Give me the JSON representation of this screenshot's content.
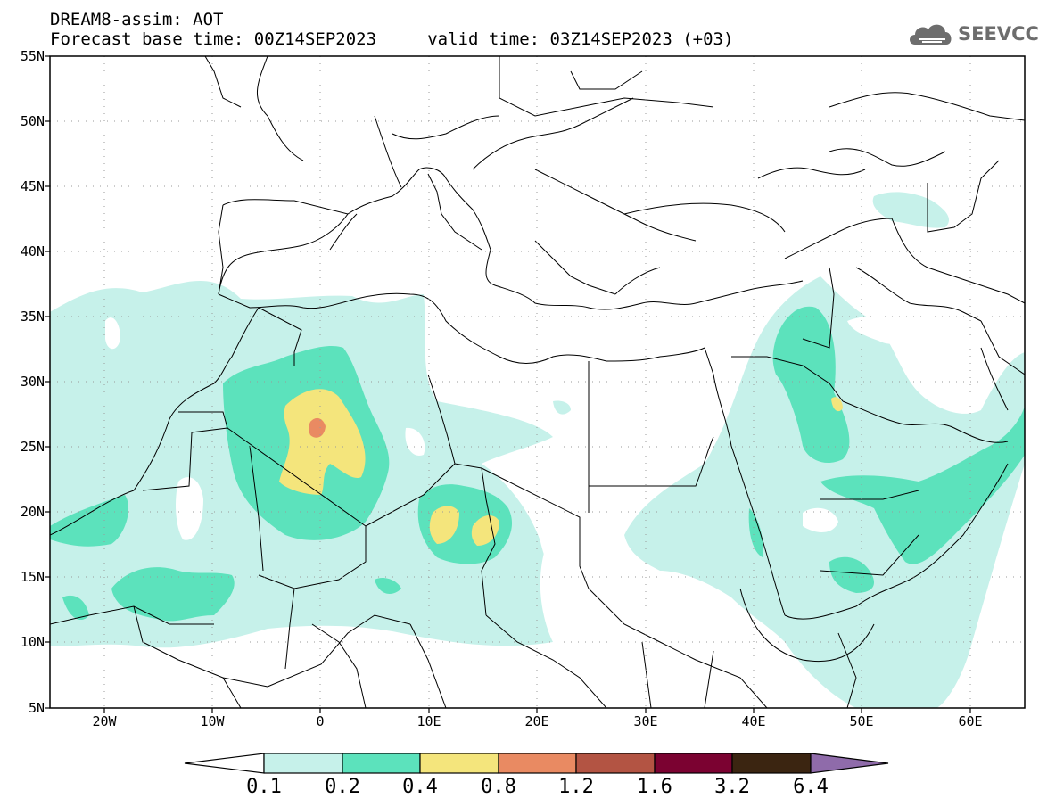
{
  "header": {
    "title_line1": "DREAM8-assim: AOT",
    "title_line2": "Forecast base time: 00Z14SEP2023     valid time: 03Z14SEP2023 (+03)"
  },
  "logo": {
    "text": "SEEVCCC",
    "icon": "cloud-icon"
  },
  "map": {
    "lat_labels": [
      "55N",
      "50N",
      "45N",
      "40N",
      "35N",
      "30N",
      "25N",
      "20N",
      "15N",
      "10N",
      "5N"
    ],
    "lon_labels": [
      "20W",
      "10W",
      "0",
      "10E",
      "20E",
      "30E",
      "40E",
      "50E",
      "60E"
    ],
    "colors": {
      "c01": "#c6f1ea",
      "c02": "#5ce2bc",
      "c04": "#f4e57c",
      "c08": "#e98a62",
      "c12": "#b35443",
      "c16": "#7b0231",
      "c32": "#3b2511",
      "c64": "#8f6baa",
      "border": "#000000",
      "grid": "#9a9a9a"
    }
  },
  "colorbar": {
    "labels": [
      "0.1",
      "0.2",
      "0.4",
      "0.8",
      "1.2",
      "1.6",
      "3.2",
      "6.4"
    ],
    "colors": [
      "#ffffff",
      "#c6f1ea",
      "#5ce2bc",
      "#f4e57c",
      "#e98a62",
      "#b35443",
      "#7b0231",
      "#3b2511",
      "#8f6baa"
    ]
  }
}
